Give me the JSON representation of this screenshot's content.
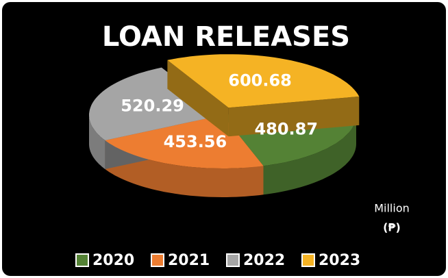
{
  "chart_data": {
    "type": "pie3d",
    "title": "LOAN RELEASES",
    "categories": [
      "2020",
      "2021",
      "2022",
      "2023"
    ],
    "values": [
      480.87,
      453.56,
      520.29,
      600.68
    ],
    "colors": [
      "#548235",
      "#ed7d31",
      "#a5a5a5",
      "#f5b324"
    ],
    "exploded": [
      false,
      false,
      false,
      true
    ],
    "annotations": [
      "Million",
      "(₱)"
    ],
    "legend": "bottom"
  }
}
